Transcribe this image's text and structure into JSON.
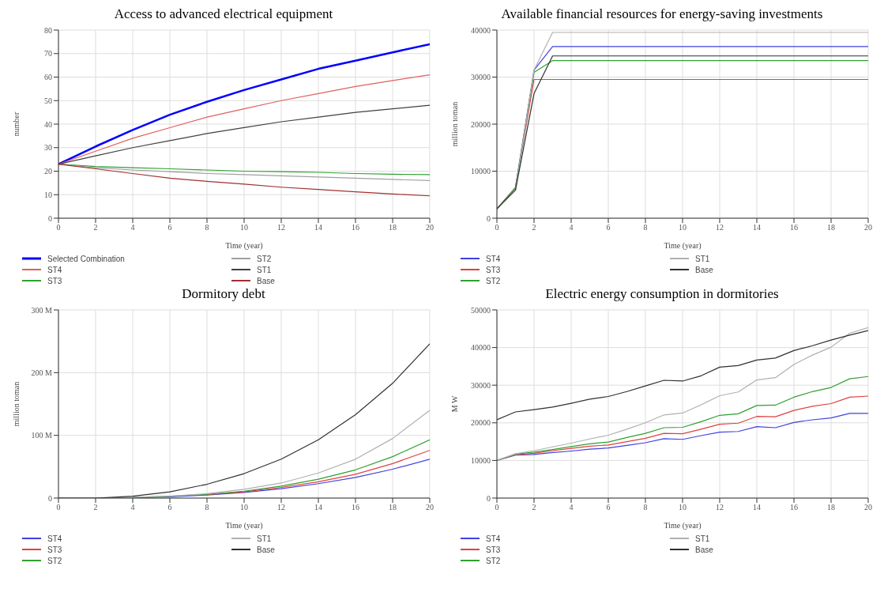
{
  "chart_data": [
    {
      "type": "line",
      "title": "Access to advanced electrical equipment",
      "xlabel": "Time (year)",
      "ylabel": "number",
      "x": [
        0,
        2,
        4,
        6,
        8,
        10,
        12,
        14,
        16,
        18,
        20
      ],
      "xlim": [
        0,
        20
      ],
      "xticks": [
        0,
        2,
        4,
        6,
        8,
        10,
        12,
        14,
        16,
        18,
        20
      ],
      "ylim": [
        0,
        80
      ],
      "yticks": [
        0,
        10,
        20,
        30,
        40,
        50,
        60,
        70,
        80
      ],
      "grid": true,
      "legend": "bottom",
      "marker": "none",
      "line_style": "solid",
      "series": [
        {
          "name": "Selected Combination",
          "color": "#0000ff",
          "values": [
            23,
            30.5,
            37.5,
            44,
            49.5,
            54.5,
            59,
            63.5,
            67,
            70.5,
            74
          ]
        },
        {
          "name": "ST4",
          "color": "#e06060",
          "values": [
            23,
            28.5,
            34,
            38.5,
            43,
            46.5,
            50,
            53,
            56,
            58.5,
            61
          ]
        },
        {
          "name": "ST3",
          "color": "#30a030",
          "values": [
            23,
            22,
            21.5,
            21,
            20.5,
            20,
            19.8,
            19.5,
            19,
            18.7,
            18.5
          ]
        },
        {
          "name": "ST2",
          "color": "#a0a0a0",
          "values": [
            23,
            21.5,
            20.5,
            19.8,
            19,
            18.5,
            18,
            17.5,
            17,
            16.5,
            16
          ]
        },
        {
          "name": "ST1",
          "color": "#404040",
          "values": [
            23,
            26.5,
            30,
            33,
            36,
            38.5,
            41,
            43,
            45,
            46.5,
            48
          ]
        },
        {
          "name": "Base",
          "color": "#a03030",
          "values": [
            23,
            21,
            19,
            17,
            15.7,
            14.5,
            13.2,
            12.2,
            11.2,
            10.3,
            9.5
          ]
        }
      ]
    },
    {
      "type": "line",
      "title": "Available financial resources for energy-saving investments",
      "xlabel": "Time (year)",
      "ylabel": "million toman",
      "x": [
        0,
        1,
        2,
        3,
        20
      ],
      "xlim": [
        0,
        20
      ],
      "xticks": [
        0,
        2,
        4,
        6,
        8,
        10,
        12,
        14,
        16,
        18,
        20
      ],
      "ylim": [
        0,
        40000
      ],
      "yticks": [
        0,
        10000,
        20000,
        30000,
        40000
      ],
      "grid": true,
      "legend": "bottom",
      "marker": "none",
      "line_style": "solid",
      "series": [
        {
          "name": "ST4",
          "color": "#4040e0",
          "values": [
            2000,
            6500,
            31500,
            36500,
            36500
          ]
        },
        {
          "name": "ST3",
          "color": "#e04040",
          "values": [
            2000,
            6500,
            29500,
            29500,
            29500
          ]
        },
        {
          "name": "ST2",
          "color": "#30a030",
          "values": [
            2000,
            6500,
            31000,
            33500,
            33500
          ]
        },
        {
          "name": "ST1",
          "color": "#b0b0b0",
          "values": [
            2000,
            6000,
            31500,
            39500,
            39500
          ]
        },
        {
          "name": "Base",
          "color": "#303030",
          "values": [
            2000,
            6000,
            26500,
            34500,
            34500
          ]
        }
      ]
    },
    {
      "type": "line",
      "title": "Dormitory debt",
      "xlabel": "Time (year)",
      "ylabel": "million toman",
      "x": [
        0,
        2,
        4,
        6,
        8,
        10,
        12,
        14,
        16,
        18,
        20
      ],
      "xlim": [
        0,
        20
      ],
      "xticks": [
        0,
        2,
        4,
        6,
        8,
        10,
        12,
        14,
        16,
        18,
        20
      ],
      "ylim": [
        0,
        300000000
      ],
      "yticks": [
        0,
        {
          "value": 100000000,
          "label": "100 M"
        },
        {
          "value": 200000000,
          "label": "200 M"
        },
        {
          "value": 300000000,
          "label": "300 M"
        }
      ],
      "grid": true,
      "legend": "bottom",
      "marker": "none",
      "line_style": "solid",
      "series": [
        {
          "name": "ST4",
          "color": "#4040e0",
          "values": [
            null,
            null,
            0,
            2000000,
            5000000,
            9000000,
            15000000,
            23000000,
            33000000,
            46000000,
            62000000
          ]
        },
        {
          "name": "ST3",
          "color": "#e04040",
          "values": [
            null,
            null,
            null,
            null,
            5500000,
            10000000,
            17000000,
            26000000,
            38000000,
            55000000,
            76000000
          ]
        },
        {
          "name": "ST2",
          "color": "#30a030",
          "values": [
            null,
            null,
            1000000,
            3000000,
            6000000,
            11000000,
            19000000,
            30000000,
            45000000,
            66000000,
            93000000
          ]
        },
        {
          "name": "ST1",
          "color": "#b0b0b0",
          "values": [
            0,
            0,
            1000000,
            3000000,
            7000000,
            14000000,
            24000000,
            40000000,
            62000000,
            95000000,
            140000000
          ]
        },
        {
          "name": "Base",
          "color": "#303030",
          "values": [
            0,
            0,
            3000000,
            10000000,
            22000000,
            39000000,
            62000000,
            93000000,
            133000000,
            183000000,
            246000000
          ]
        }
      ]
    },
    {
      "type": "line",
      "title": "Electric energy consumption in dormitories",
      "xlabel": "Time (year)",
      "ylabel": "M W",
      "x": [
        0,
        1,
        2,
        3,
        4,
        5,
        6,
        7,
        8,
        9,
        10,
        11,
        12,
        13,
        14,
        15,
        16,
        17,
        18,
        19,
        20
      ],
      "xlim": [
        0,
        20
      ],
      "xticks": [
        0,
        2,
        4,
        6,
        8,
        10,
        12,
        14,
        16,
        18,
        20
      ],
      "ylim": [
        0,
        50000
      ],
      "yticks": [
        0,
        10000,
        20000,
        30000,
        40000,
        50000
      ],
      "grid": true,
      "legend": "bottom",
      "marker": "none",
      "line_style": "solid",
      "series": [
        {
          "name": "ST4",
          "color": "#4040e0",
          "values": [
            10000,
            11400,
            11600,
            12100,
            12500,
            13000,
            13300,
            14000,
            14700,
            15800,
            15600,
            16600,
            17500,
            17700,
            19000,
            18700,
            20100,
            20800,
            21300,
            22500,
            22500
          ]
        },
        {
          "name": "ST3",
          "color": "#e04040",
          "values": [
            10000,
            11500,
            11900,
            12600,
            13200,
            13800,
            14100,
            15000,
            15900,
            17200,
            17100,
            18300,
            19600,
            19900,
            21700,
            21600,
            23300,
            24400,
            25100,
            26800,
            27100
          ]
        },
        {
          "name": "ST2",
          "color": "#30a030",
          "values": [
            10000,
            11700,
            12200,
            12900,
            13700,
            14400,
            14900,
            16100,
            17200,
            18700,
            18800,
            20300,
            22000,
            22400,
            24600,
            24700,
            26800,
            28300,
            29400,
            31700,
            32300
          ]
        },
        {
          "name": "ST1",
          "color": "#b0b0b0",
          "values": [
            10000,
            11800,
            12600,
            13600,
            14600,
            15700,
            16700,
            18300,
            20000,
            22100,
            22600,
            24800,
            27200,
            28200,
            31400,
            32000,
            35500,
            38000,
            40100,
            43800,
            45300
          ]
        },
        {
          "name": "Base",
          "color": "#303030",
          "values": [
            20800,
            22900,
            23500,
            24200,
            25200,
            26300,
            27000,
            28300,
            29800,
            31300,
            31100,
            32500,
            34800,
            35200,
            36700,
            37200,
            39200,
            40500,
            42000,
            43300,
            44500
          ]
        }
      ]
    }
  ]
}
